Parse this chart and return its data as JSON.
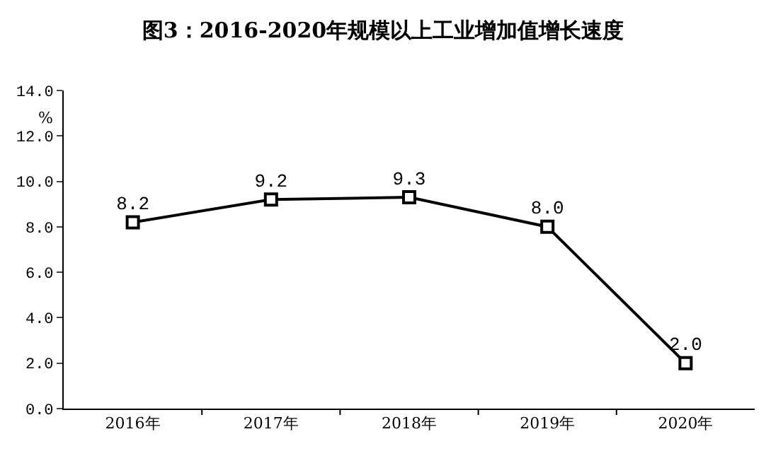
{
  "chart_data": {
    "type": "line",
    "title": "图3：2016-2020年规模以上工业增加值增长速度",
    "ylabel": "%",
    "categories": [
      "2016年",
      "2017年",
      "2018年",
      "2019年",
      "2020年"
    ],
    "series": [
      {
        "color": "#000000",
        "values": [
          8.2,
          9.2,
          9.3,
          8.0,
          2.0
        ],
        "value_labels": [
          "8.2",
          "9.2",
          "9.3",
          "8.0",
          "2.0"
        ]
      }
    ],
    "ylim": [
      0,
      14
    ],
    "yticks": [
      {
        "value": 0,
        "label": "0.0"
      },
      {
        "value": 2,
        "label": "2.0"
      },
      {
        "value": 4,
        "label": "4.0"
      },
      {
        "value": 6,
        "label": "6.0"
      },
      {
        "value": 8,
        "label": "8.0"
      },
      {
        "value": 10,
        "label": "10.0"
      },
      {
        "value": 12,
        "label": "12.0"
      },
      {
        "value": 14,
        "label": "14.0"
      }
    ],
    "grid": false,
    "marker": "square",
    "line_style": "solid"
  }
}
